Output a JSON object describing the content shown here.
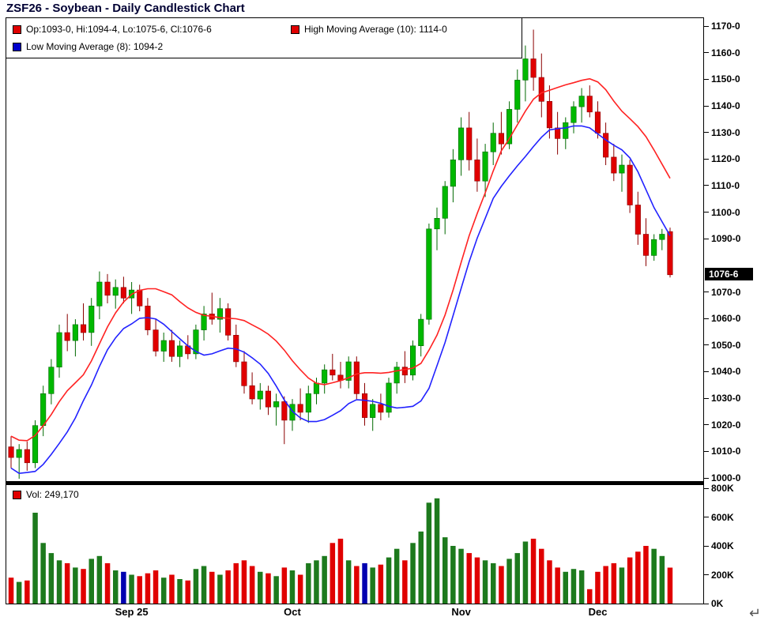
{
  "icons": {
    "enter_arrow": "↵"
  },
  "colors": {
    "up": "#00b800",
    "up_dark": "#006a00",
    "down": "#e00000",
    "down_dark": "#8a0000",
    "ma_high": "#ff2222",
    "ma_low": "#2222ff",
    "vol_up": "#1d7a1d",
    "vol_down": "#e00000",
    "vol_special": "#0000b0",
    "legend_red": "#e00000",
    "legend_blue": "#0000cc",
    "tag_bg": "#000000",
    "tag_fg": "#ffffff",
    "title_color": "#000033"
  },
  "chart_data": {
    "type": "candlestick",
    "title": "ZSF26 - Soybean - Daily Candlestick Chart",
    "symbol": "ZSF26",
    "legend": {
      "ohlc_label": "Op:1093-0, Hi:1094-4, Lo:1075-6, Cl:1076-6",
      "high_ma_label": "High Moving Average (10): 1114-0",
      "low_ma_label": "Low Moving Average (8): 1094-2",
      "volume_label": "Vol: 249,170"
    },
    "last_price_label": "1076-6",
    "last_close": 1076.75,
    "last_volume": 249170,
    "y_axis": {
      "min": 1000,
      "max": 1170,
      "step": 10,
      "label_suffix": "-0"
    },
    "volume_axis": {
      "max": 800000,
      "step": 200000,
      "labels": [
        "800K",
        "600K",
        "400K",
        "200K",
        "0K"
      ]
    },
    "x_tick_labels": [
      {
        "index": 15,
        "label": "Sep 25"
      },
      {
        "index": 35,
        "label": "Oct"
      },
      {
        "index": 56,
        "label": "Nov"
      },
      {
        "index": 73,
        "label": "Dec"
      }
    ],
    "moving_averages": [
      {
        "name": "High Moving Average",
        "period": 10,
        "source": "high",
        "color_key": "ma_high",
        "current": "1114-0"
      },
      {
        "name": "Low Moving Average",
        "period": 8,
        "source": "low",
        "color_key": "ma_low",
        "current": "1094-2"
      }
    ],
    "ohlcv": [
      [
        1012,
        1016,
        1004,
        1008,
        180000
      ],
      [
        1008,
        1013,
        1000,
        1011,
        150000
      ],
      [
        1011,
        1014,
        1003,
        1006,
        160000
      ],
      [
        1006,
        1022,
        1004,
        1020,
        630000
      ],
      [
        1020,
        1035,
        1016,
        1032,
        420000
      ],
      [
        1032,
        1045,
        1028,
        1042,
        350000
      ],
      [
        1042,
        1058,
        1038,
        1055,
        300000
      ],
      [
        1055,
        1062,
        1048,
        1052,
        280000
      ],
      [
        1052,
        1060,
        1046,
        1058,
        250000
      ],
      [
        1058,
        1066,
        1052,
        1055,
        240000
      ],
      [
        1055,
        1068,
        1050,
        1065,
        310000
      ],
      [
        1065,
        1078,
        1060,
        1074,
        330000
      ],
      [
        1074,
        1077,
        1066,
        1069,
        280000
      ],
      [
        1069,
        1075,
        1064,
        1072,
        230000
      ],
      [
        1072,
        1076,
        1066,
        1068,
        220000
      ],
      [
        1068,
        1074,
        1062,
        1071,
        200000
      ],
      [
        1071,
        1073,
        1063,
        1065,
        190000
      ],
      [
        1065,
        1068,
        1054,
        1056,
        210000
      ],
      [
        1056,
        1060,
        1046,
        1048,
        230000
      ],
      [
        1048,
        1055,
        1044,
        1052,
        180000
      ],
      [
        1052,
        1056,
        1044,
        1046,
        200000
      ],
      [
        1046,
        1052,
        1042,
        1050,
        170000
      ],
      [
        1050,
        1054,
        1045,
        1047,
        160000
      ],
      [
        1047,
        1058,
        1045,
        1056,
        240000
      ],
      [
        1056,
        1065,
        1052,
        1062,
        260000
      ],
      [
        1062,
        1070,
        1058,
        1060,
        220000
      ],
      [
        1060,
        1068,
        1055,
        1064,
        200000
      ],
      [
        1064,
        1066,
        1052,
        1054,
        230000
      ],
      [
        1054,
        1058,
        1042,
        1044,
        280000
      ],
      [
        1044,
        1048,
        1032,
        1035,
        300000
      ],
      [
        1035,
        1040,
        1028,
        1030,
        260000
      ],
      [
        1030,
        1036,
        1026,
        1033,
        220000
      ],
      [
        1033,
        1035,
        1024,
        1027,
        210000
      ],
      [
        1027,
        1032,
        1020,
        1029,
        190000
      ],
      [
        1029,
        1031,
        1013,
        1022,
        250000
      ],
      [
        1022,
        1030,
        1018,
        1028,
        230000
      ],
      [
        1028,
        1034,
        1022,
        1025,
        200000
      ],
      [
        1025,
        1035,
        1021,
        1032,
        280000
      ],
      [
        1032,
        1038,
        1028,
        1036,
        300000
      ],
      [
        1036,
        1043,
        1032,
        1041,
        330000
      ],
      [
        1041,
        1047,
        1037,
        1039,
        420000
      ],
      [
        1039,
        1044,
        1034,
        1037,
        450000
      ],
      [
        1037,
        1046,
        1034,
        1044,
        300000
      ],
      [
        1044,
        1046,
        1030,
        1032,
        260000
      ],
      [
        1032,
        1036,
        1020,
        1023,
        280000
      ],
      [
        1023,
        1030,
        1018,
        1028,
        250000
      ],
      [
        1028,
        1032,
        1022,
        1025,
        270000
      ],
      [
        1025,
        1038,
        1023,
        1036,
        320000
      ],
      [
        1036,
        1044,
        1032,
        1042,
        380000
      ],
      [
        1042,
        1048,
        1036,
        1039,
        300000
      ],
      [
        1039,
        1052,
        1037,
        1050,
        420000
      ],
      [
        1050,
        1062,
        1046,
        1060,
        500000
      ],
      [
        1060,
        1096,
        1058,
        1094,
        700000
      ],
      [
        1094,
        1102,
        1086,
        1098,
        730000
      ],
      [
        1098,
        1112,
        1092,
        1110,
        460000
      ],
      [
        1110,
        1124,
        1104,
        1120,
        400000
      ],
      [
        1120,
        1136,
        1114,
        1132,
        380000
      ],
      [
        1132,
        1138,
        1116,
        1120,
        350000
      ],
      [
        1120,
        1128,
        1108,
        1112,
        320000
      ],
      [
        1112,
        1126,
        1106,
        1123,
        300000
      ],
      [
        1123,
        1134,
        1118,
        1130,
        280000
      ],
      [
        1130,
        1138,
        1122,
        1126,
        260000
      ],
      [
        1126,
        1142,
        1124,
        1139,
        310000
      ],
      [
        1139,
        1154,
        1134,
        1150,
        350000
      ],
      [
        1150,
        1163,
        1142,
        1158,
        430000
      ],
      [
        1158,
        1169,
        1146,
        1151,
        450000
      ],
      [
        1151,
        1160,
        1136,
        1142,
        380000
      ],
      [
        1142,
        1148,
        1128,
        1132,
        300000
      ],
      [
        1132,
        1138,
        1122,
        1128,
        250000
      ],
      [
        1128,
        1136,
        1124,
        1134,
        220000
      ],
      [
        1134,
        1142,
        1130,
        1140,
        240000
      ],
      [
        1140,
        1147,
        1134,
        1144,
        230000
      ],
      [
        1144,
        1148,
        1136,
        1138,
        100000
      ],
      [
        1138,
        1142,
        1128,
        1130,
        220000
      ],
      [
        1130,
        1134,
        1118,
        1121,
        260000
      ],
      [
        1121,
        1126,
        1112,
        1115,
        280000
      ],
      [
        1115,
        1122,
        1108,
        1118,
        250000
      ],
      [
        1118,
        1120,
        1100,
        1103,
        320000
      ],
      [
        1103,
        1108,
        1088,
        1092,
        360000
      ],
      [
        1092,
        1098,
        1080,
        1084,
        400000
      ],
      [
        1084,
        1092,
        1082,
        1090,
        380000
      ],
      [
        1090,
        1094,
        1086,
        1092,
        330000
      ],
      [
        1093,
        1094.5,
        1075.75,
        1076.75,
        249170
      ]
    ],
    "volume_color_overrides": {
      "14": "#0000b0",
      "44": "#0000b0"
    }
  }
}
